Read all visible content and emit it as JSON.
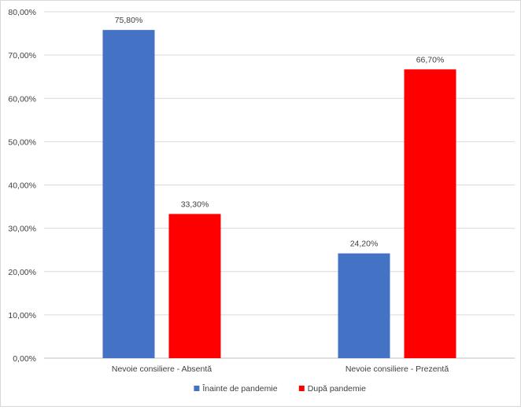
{
  "chart_data": {
    "type": "bar",
    "categories": [
      "Nevoie consiliere - Absentă",
      "Nevoie consiliere - Prezentă"
    ],
    "series": [
      {
        "name": "Înainte de pandemie",
        "color": "#4472C4",
        "values": [
          75.8,
          24.2
        ],
        "labels": [
          "75,80%",
          "24,20%"
        ]
      },
      {
        "name": "După pandemie",
        "color": "#FF0000",
        "values": [
          33.3,
          66.7
        ],
        "labels": [
          "33,30%",
          "66,70%"
        ]
      }
    ],
    "ylim": [
      0,
      80
    ],
    "yticks": [
      0,
      10,
      20,
      30,
      40,
      50,
      60,
      70,
      80
    ],
    "ytick_labels": [
      "0,00%",
      "10,00%",
      "20,00%",
      "30,00%",
      "40,00%",
      "50,00%",
      "60,00%",
      "70,00%",
      "80,00%"
    ],
    "grid": true,
    "legend_position": "bottom"
  }
}
